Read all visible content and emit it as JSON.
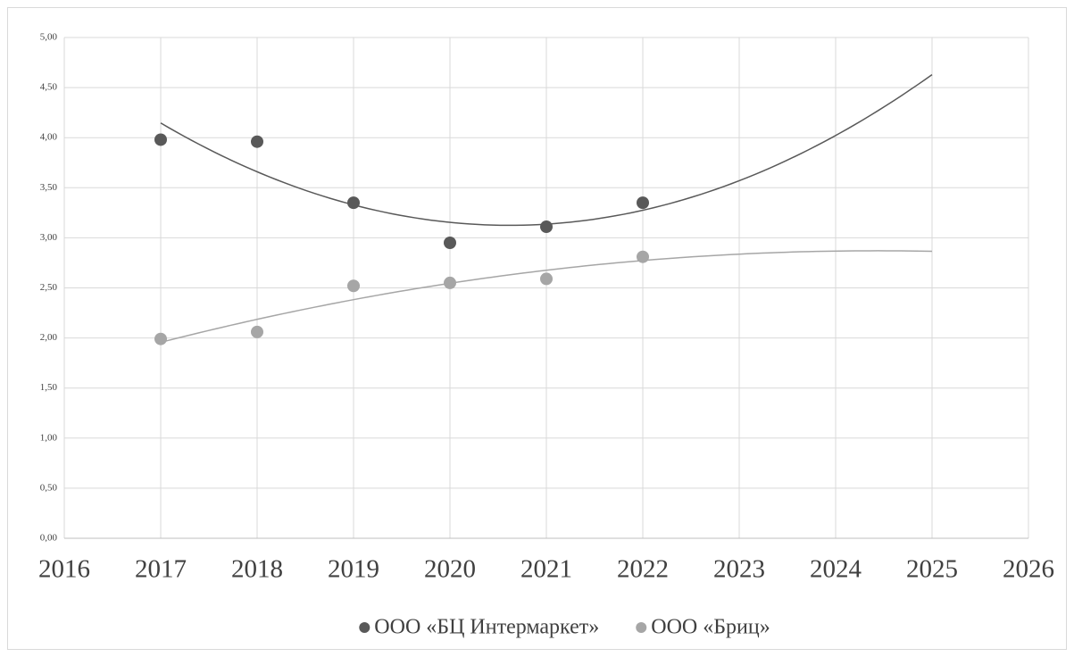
{
  "chart_data": {
    "type": "scatter",
    "x": [
      2017,
      2018,
      2019,
      2020,
      2021,
      2022
    ],
    "series": [
      {
        "name": "ООО «БЦ Интермаркет»",
        "color": "#595959",
        "values": [
          3.98,
          3.96,
          3.35,
          2.95,
          3.11,
          3.35
        ]
      },
      {
        "name": "ООО «Бриц»",
        "color": "#a6a6a6",
        "values": [
          1.99,
          2.06,
          2.52,
          2.55,
          2.59,
          2.81
        ]
      }
    ],
    "trendline": {
      "type": "polynomial",
      "order": 2,
      "forward": 3
    },
    "xlim": [
      2016,
      2026
    ],
    "xticks": [
      2016,
      2017,
      2018,
      2019,
      2020,
      2021,
      2022,
      2023,
      2024,
      2025,
      2026
    ],
    "ylim": [
      0,
      5
    ],
    "yticks": [
      {
        "value": 0,
        "label": "0,00"
      },
      {
        "value": 0.5,
        "label": "0,50"
      },
      {
        "value": 1,
        "label": "1,00"
      },
      {
        "value": 1.5,
        "label": "1,50"
      },
      {
        "value": 2,
        "label": "2,00"
      },
      {
        "value": 2.5,
        "label": "2,50"
      },
      {
        "value": 3,
        "label": "3,00"
      },
      {
        "value": 3.5,
        "label": "3,50"
      },
      {
        "value": 4,
        "label": "4,00"
      },
      {
        "value": 4.5,
        "label": "4,50"
      },
      {
        "value": 5,
        "label": "5,00"
      }
    ],
    "grid": true,
    "legend": "bottom"
  }
}
